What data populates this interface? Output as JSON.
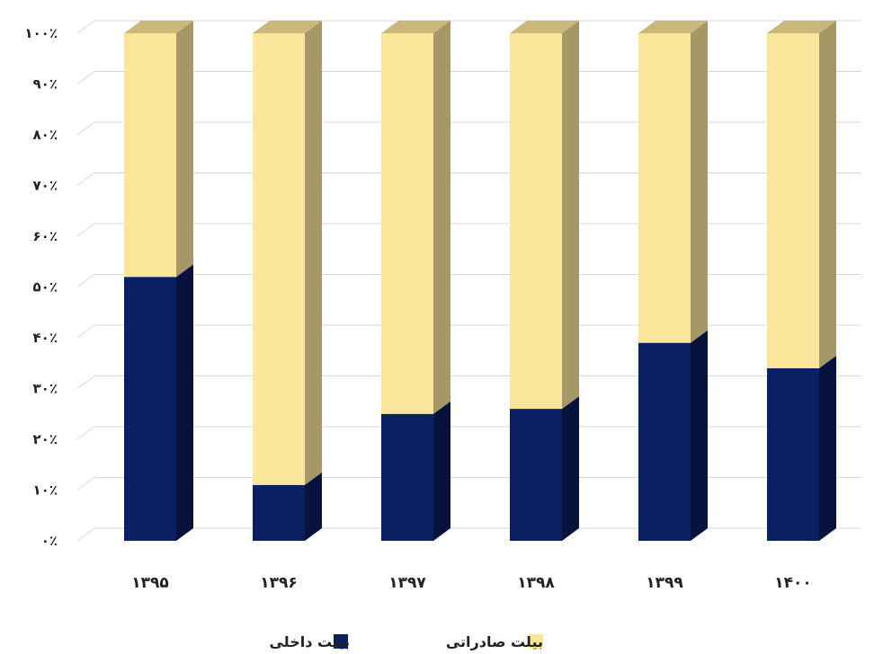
{
  "chart_data": {
    "type": "bar",
    "stacked": true,
    "percent_stacked": true,
    "style": "3d-column",
    "categories": [
      "۱۳۹۵",
      "۱۳۹۶",
      "۱۳۹۷",
      "۱۳۹۸",
      "۱۳۹۹",
      "۱۴۰۰"
    ],
    "series": [
      {
        "name": "بیلت داخلی",
        "color": "#0b1f63",
        "values": [
          52,
          11,
          25,
          26,
          39,
          34
        ]
      },
      {
        "name": "بیلت صادراتی",
        "color": "#fbe59b",
        "values": [
          48,
          89,
          75,
          74,
          61,
          66
        ]
      }
    ],
    "y_ticks": [
      "۰٪",
      "۱۰٪",
      "۲۰٪",
      "۳۰٪",
      "۴۰٪",
      "۵۰٪",
      "۶۰٪",
      "۷۰٪",
      "۸۰٪",
      "۹۰٪",
      "۱۰۰٪"
    ],
    "ylim": [
      0,
      100
    ],
    "grid": true,
    "legend_position": "bottom",
    "title": "",
    "xlabel": "",
    "ylabel": ""
  }
}
